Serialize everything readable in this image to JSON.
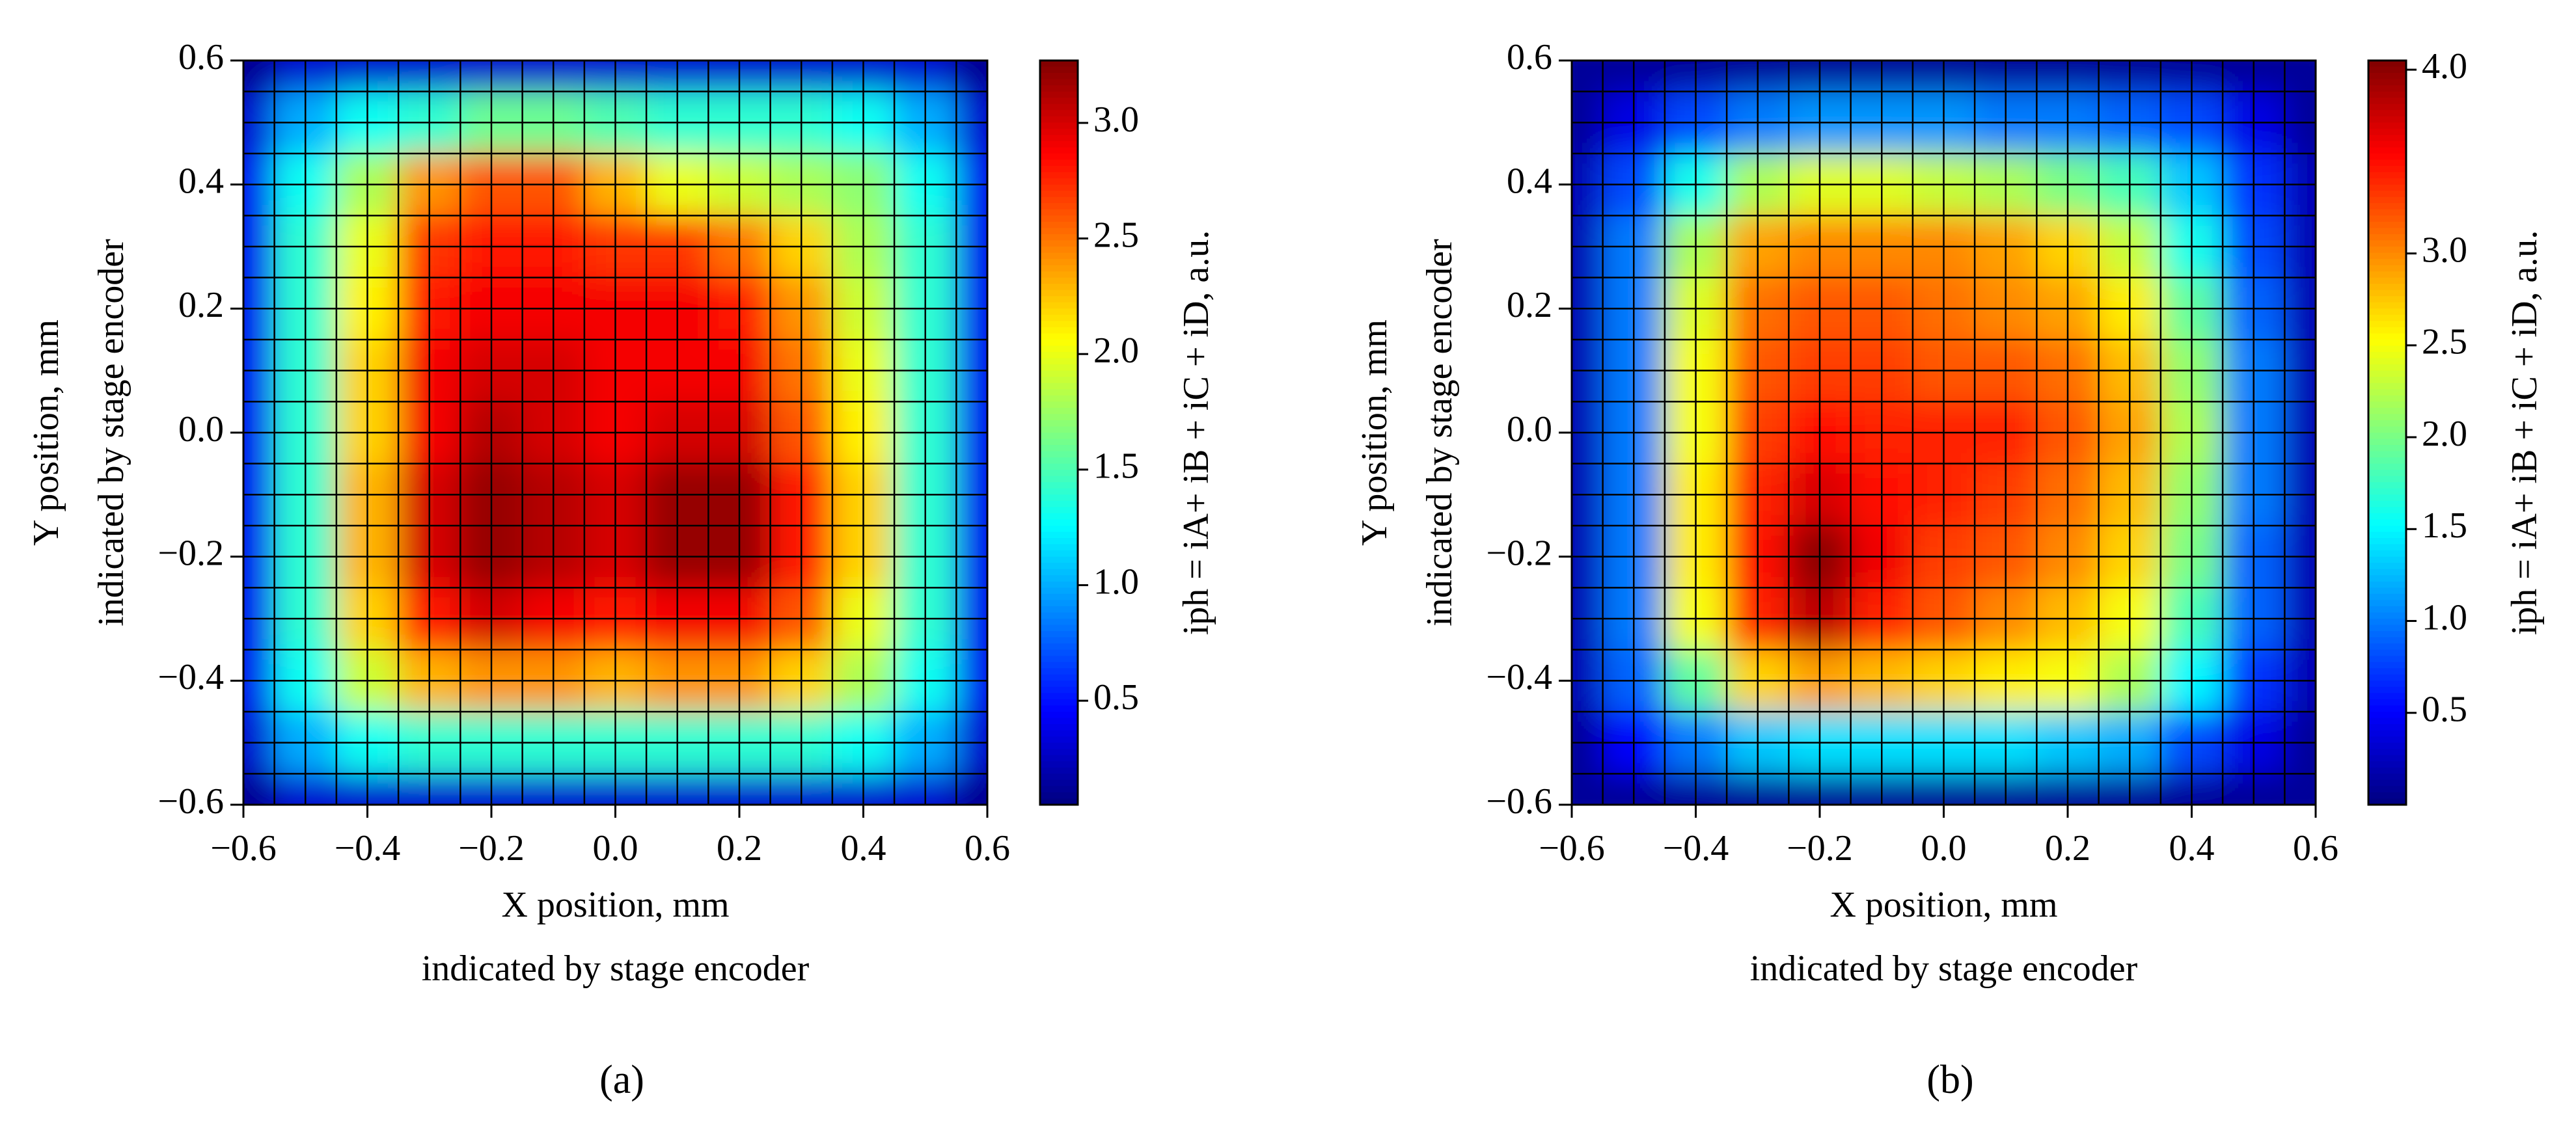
{
  "chart_data": [
    {
      "type": "heatmap",
      "panel_label": "(a)",
      "xlabel": [
        "X position, mm",
        "indicated by stage encoder"
      ],
      "ylabel": [
        "Y position, mm",
        "indicated by stage encoder"
      ],
      "colorbar_label": "iph = iA+ iB + iC + iD, a.u.",
      "colormap": "jet",
      "x": [
        -0.6,
        -0.5,
        -0.4,
        -0.3,
        -0.2,
        -0.1,
        0,
        0.1,
        0.2,
        0.3,
        0.4,
        0.5,
        0.6
      ],
      "y": [
        0.6,
        0.5,
        0.4,
        0.3,
        0.2,
        0.1,
        0,
        -0.1,
        -0.2,
        -0.3,
        -0.4,
        -0.5,
        -0.6
      ],
      "z": [
        [
          0.1,
          0.3,
          0.3,
          0.3,
          0.3,
          0.3,
          0.3,
          0.3,
          0.3,
          0.3,
          0.3,
          0.3,
          0.1
        ],
        [
          0.3,
          1.0,
          1.3,
          1.4,
          1.6,
          1.6,
          1.5,
          1.4,
          1.4,
          1.4,
          1.3,
          1.0,
          0.3
        ],
        [
          0.4,
          1.3,
          1.8,
          2.4,
          2.6,
          2.6,
          2.3,
          2.0,
          1.9,
          1.8,
          1.7,
          1.3,
          0.4
        ],
        [
          0.4,
          1.4,
          2.0,
          2.7,
          2.8,
          2.8,
          2.7,
          2.7,
          2.5,
          2.2,
          1.8,
          1.4,
          0.4
        ],
        [
          0.4,
          1.4,
          2.1,
          2.8,
          2.9,
          2.9,
          2.9,
          2.9,
          2.8,
          2.4,
          1.9,
          1.4,
          0.4
        ],
        [
          0.4,
          1.4,
          2.2,
          2.9,
          3.0,
          3.0,
          2.9,
          2.9,
          2.9,
          2.5,
          2.0,
          1.4,
          0.4
        ],
        [
          0.4,
          1.4,
          2.2,
          2.9,
          3.1,
          3.0,
          2.9,
          3.0,
          3.0,
          2.6,
          2.1,
          1.4,
          0.4
        ],
        [
          0.4,
          1.4,
          2.3,
          3.0,
          3.2,
          3.1,
          3.0,
          3.2,
          3.2,
          2.8,
          2.2,
          1.4,
          0.4
        ],
        [
          0.4,
          1.4,
          2.3,
          3.0,
          3.2,
          3.1,
          3.0,
          3.2,
          3.2,
          2.8,
          2.2,
          1.4,
          0.4
        ],
        [
          0.4,
          1.4,
          2.2,
          2.8,
          3.0,
          2.9,
          2.8,
          2.9,
          2.9,
          2.6,
          2.0,
          1.4,
          0.4
        ],
        [
          0.4,
          1.3,
          1.9,
          2.3,
          2.4,
          2.4,
          2.3,
          2.4,
          2.4,
          2.2,
          1.8,
          1.3,
          0.4
        ],
        [
          0.3,
          1.0,
          1.3,
          1.4,
          1.4,
          1.4,
          1.4,
          1.4,
          1.4,
          1.4,
          1.3,
          1.0,
          0.3
        ],
        [
          0.1,
          0.3,
          0.3,
          0.3,
          0.3,
          0.3,
          0.3,
          0.3,
          0.3,
          0.3,
          0.3,
          0.3,
          0.1
        ]
      ],
      "xlim": [
        -0.6,
        0.6
      ],
      "ylim": [
        -0.6,
        0.6
      ],
      "xticks": [
        {
          "value": -0.6,
          "label": "−0.6"
        },
        {
          "value": -0.4,
          "label": "−0.4"
        },
        {
          "value": -0.2,
          "label": "−0.2"
        },
        {
          "value": 0,
          "label": "0.0"
        },
        0.2,
        0.4,
        0.6
      ],
      "yticks": [
        {
          "value": -0.6,
          "label": "−0.6"
        },
        {
          "value": -0.4,
          "label": "−0.4"
        },
        {
          "value": -0.2,
          "label": "−0.2"
        },
        {
          "value": 0,
          "label": "0.0"
        },
        0.2,
        0.4,
        0.6
      ],
      "zlim": [
        0.05,
        3.27
      ],
      "zticks": [
        0.5,
        {
          "value": 1,
          "label": "1.0"
        },
        1.5,
        {
          "value": 2,
          "label": "2.0"
        },
        2.5,
        {
          "value": 3,
          "label": "3.0"
        }
      ]
    },
    {
      "type": "heatmap",
      "panel_label": "(b)",
      "xlabel": [
        "X position, mm",
        "indicated by stage encoder"
      ],
      "ylabel": [
        "Y position, mm",
        "indicated by stage encoder"
      ],
      "colorbar_label": "iph = iA+ iB + iC + iD, a.u.",
      "colormap": "jet",
      "x": [
        -0.6,
        -0.5,
        -0.4,
        -0.3,
        -0.2,
        -0.1,
        0,
        0.1,
        0.2,
        0.3,
        0.4,
        0.5,
        0.6
      ],
      "y": [
        0.6,
        0.5,
        0.4,
        0.3,
        0.2,
        0.1,
        0,
        -0.1,
        -0.2,
        -0.3,
        -0.4,
        -0.5,
        -0.6
      ],
      "z": [
        [
          0.1,
          0.1,
          0.1,
          0.1,
          0.1,
          0.1,
          0.1,
          0.1,
          0.1,
          0.1,
          0.1,
          0.1,
          0.1
        ],
        [
          0.1,
          0.4,
          0.8,
          1.0,
          1.1,
          1.1,
          1.1,
          1.0,
          1.0,
          0.9,
          0.8,
          0.4,
          0.1
        ],
        [
          0.2,
          0.8,
          1.6,
          2.2,
          2.4,
          2.4,
          2.3,
          2.2,
          2.0,
          1.8,
          1.3,
          0.7,
          0.2
        ],
        [
          0.2,
          1.0,
          2.2,
          2.9,
          3.0,
          3.0,
          3.0,
          2.9,
          2.7,
          2.3,
          1.6,
          0.8,
          0.2
        ],
        [
          0.2,
          1.0,
          2.4,
          3.1,
          3.2,
          3.2,
          3.1,
          3.0,
          2.9,
          2.6,
          1.9,
          0.9,
          0.2
        ],
        [
          0.2,
          1.0,
          2.5,
          3.2,
          3.3,
          3.3,
          3.2,
          3.2,
          3.1,
          2.8,
          2.1,
          1.0,
          0.2
        ],
        [
          0.2,
          1.0,
          2.5,
          3.3,
          3.5,
          3.4,
          3.4,
          3.4,
          3.2,
          2.9,
          2.2,
          1.0,
          0.2
        ],
        [
          0.2,
          1.0,
          2.6,
          3.4,
          3.7,
          3.5,
          3.4,
          3.3,
          3.1,
          2.8,
          2.1,
          1.0,
          0.2
        ],
        [
          0.2,
          1.0,
          2.6,
          3.5,
          4.0,
          3.6,
          3.3,
          3.2,
          3.0,
          2.7,
          2.0,
          0.9,
          0.2
        ],
        [
          0.2,
          1.0,
          2.5,
          3.4,
          3.8,
          3.4,
          3.2,
          3.0,
          2.8,
          2.5,
          1.8,
          0.9,
          0.2
        ],
        [
          0.2,
          0.9,
          1.9,
          2.7,
          2.9,
          2.8,
          2.7,
          2.6,
          2.5,
          2.2,
          1.5,
          0.7,
          0.2
        ],
        [
          0.1,
          0.5,
          1.0,
          1.3,
          1.4,
          1.4,
          1.4,
          1.4,
          1.3,
          1.2,
          0.8,
          0.4,
          0.1
        ],
        [
          0.1,
          0.1,
          0.1,
          0.1,
          0.1,
          0.1,
          0.1,
          0.1,
          0.1,
          0.1,
          0.1,
          0.1,
          0.1
        ]
      ],
      "xlim": [
        -0.6,
        0.6
      ],
      "ylim": [
        -0.6,
        0.6
      ],
      "xticks": [
        {
          "value": -0.6,
          "label": "−0.6"
        },
        {
          "value": -0.4,
          "label": "−0.4"
        },
        {
          "value": -0.2,
          "label": "−0.2"
        },
        {
          "value": 0,
          "label": "0.0"
        },
        0.2,
        0.4,
        0.6
      ],
      "yticks": [
        {
          "value": -0.6,
          "label": "−0.6"
        },
        {
          "value": -0.4,
          "label": "−0.4"
        },
        {
          "value": -0.2,
          "label": "−0.2"
        },
        {
          "value": 0,
          "label": "0.0"
        },
        0.2,
        0.4,
        0.6
      ],
      "zlim": [
        0,
        4.05
      ],
      "zticks": [
        0.5,
        {
          "value": 1,
          "label": "1.0"
        },
        1.5,
        {
          "value": 2,
          "label": "2.0"
        },
        2.5,
        {
          "value": 3,
          "label": "3.0"
        },
        {
          "value": 4,
          "label": "4.0"
        }
      ]
    }
  ]
}
